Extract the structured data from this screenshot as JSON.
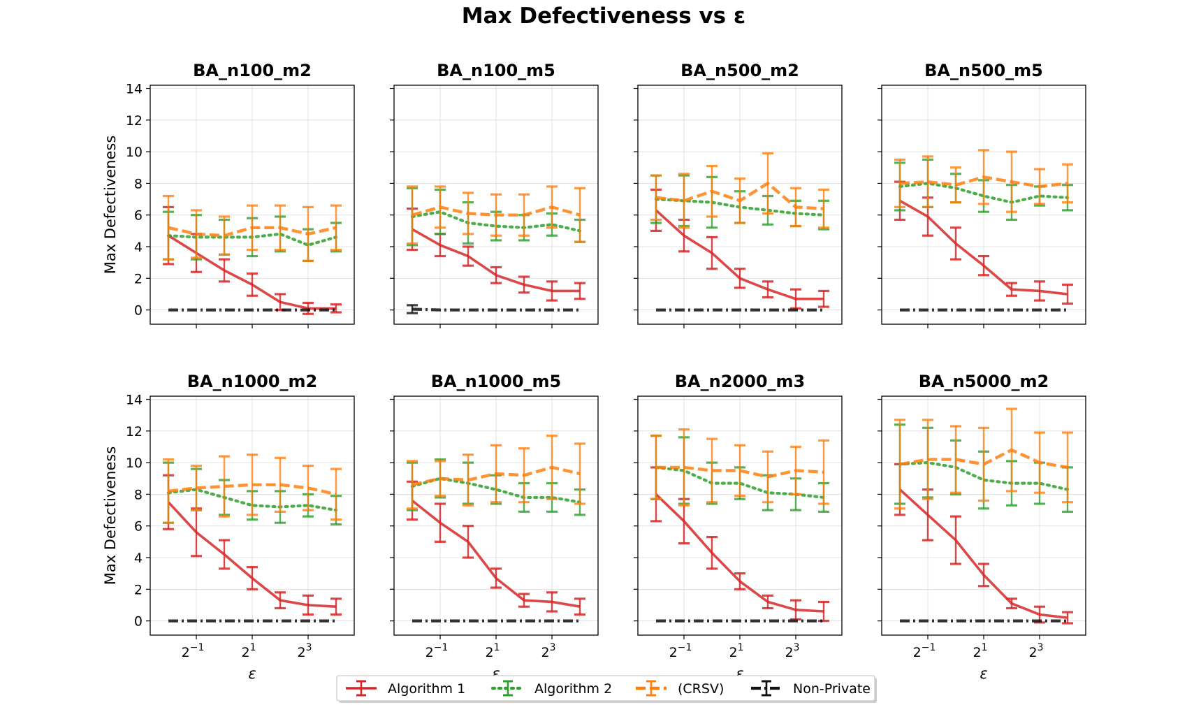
{
  "figure": {
    "title": "Max Defectiveness vs ε",
    "ylabel": "Max Defectiveness",
    "xlabel": "ε"
  },
  "legend": {
    "position": "bottom-center",
    "entries": [
      {
        "name": "Algorithm 1",
        "color": "#d62728",
        "style": "solid"
      },
      {
        "name": "Algorithm 2",
        "color": "#2ca02c",
        "style": "dotted"
      },
      {
        "name": "(CRSV)",
        "color": "#ff7f0e",
        "style": "dashed"
      },
      {
        "name": "Non-Private",
        "color": "#111111",
        "style": "dashdot"
      }
    ]
  },
  "chart_data": [
    {
      "type": "line",
      "title": "BA_n100_m2",
      "x": [
        0.25,
        0.5,
        1,
        2,
        4,
        8,
        16
      ],
      "xscale": "log2",
      "xticks": [
        {
          "value": 0.5,
          "base": "2",
          "exp": "−1"
        },
        {
          "value": 2,
          "base": "2",
          "exp": "1"
        },
        {
          "value": 8,
          "base": "2",
          "exp": "3"
        }
      ],
      "ylim": [
        -0.9,
        14.2
      ],
      "yticks": [
        "0",
        "2",
        "4",
        "6",
        "8",
        "10",
        "12",
        "14"
      ],
      "series": [
        {
          "name": "Algorithm 1",
          "values": [
            4.7,
            3.6,
            2.5,
            1.6,
            0.5,
            0.1,
            0.1
          ],
          "errors": [
            1.8,
            1.2,
            0.7,
            0.7,
            0.5,
            0.35,
            0.25
          ]
        },
        {
          "name": "Algorithm 2",
          "values": [
            4.7,
            4.6,
            4.6,
            4.6,
            4.8,
            4.1,
            4.6
          ],
          "errors": [
            1.5,
            1.4,
            1.1,
            1.2,
            1.1,
            1.0,
            0.9
          ]
        },
        {
          "name": "(CRSV)",
          "values": [
            5.2,
            4.8,
            4.7,
            5.2,
            5.2,
            4.8,
            5.2
          ],
          "errors": [
            2.0,
            1.5,
            1.2,
            1.4,
            1.4,
            1.7,
            1.4
          ]
        },
        {
          "name": "Non-Private",
          "values": [
            0,
            0,
            0,
            0,
            0,
            0,
            0
          ],
          "errors": [
            0,
            0,
            0,
            0,
            0,
            0,
            0
          ]
        }
      ]
    },
    {
      "type": "line",
      "title": "BA_n100_m5",
      "x": [
        0.25,
        0.5,
        1,
        2,
        4,
        8,
        16
      ],
      "xscale": "log2",
      "xticks": [
        {
          "value": 0.5,
          "base": "2",
          "exp": "−1"
        },
        {
          "value": 2,
          "base": "2",
          "exp": "1"
        },
        {
          "value": 8,
          "base": "2",
          "exp": "3"
        }
      ],
      "ylim": [
        -0.9,
        14.2
      ],
      "yticks": [
        "0",
        "2",
        "4",
        "6",
        "8",
        "10",
        "12",
        "14"
      ],
      "series": [
        {
          "name": "Algorithm 1",
          "values": [
            5.1,
            4.1,
            3.4,
            2.2,
            1.6,
            1.2,
            1.2
          ],
          "errors": [
            1.3,
            0.7,
            0.6,
            0.5,
            0.5,
            0.6,
            0.5
          ]
        },
        {
          "name": "Algorithm 2",
          "values": [
            5.9,
            6.2,
            5.5,
            5.3,
            5.2,
            5.4,
            5.0
          ],
          "errors": [
            1.8,
            1.4,
            1.3,
            0.9,
            0.8,
            0.7,
            0.7
          ]
        },
        {
          "name": "(CRSV)",
          "values": [
            6.0,
            6.5,
            6.1,
            6.0,
            6.0,
            6.5,
            6.0
          ],
          "errors": [
            1.8,
            1.3,
            1.3,
            1.3,
            1.3,
            1.3,
            1.7
          ]
        },
        {
          "name": "Non-Private",
          "values": [
            0.05,
            0,
            0,
            0,
            0,
            0,
            0
          ],
          "errors": [
            0.25,
            0,
            0,
            0,
            0,
            0,
            0
          ]
        }
      ]
    },
    {
      "type": "line",
      "title": "BA_n500_m2",
      "x": [
        0.25,
        0.5,
        1,
        2,
        4,
        8,
        16
      ],
      "xscale": "log2",
      "xticks": [
        {
          "value": 0.5,
          "base": "2",
          "exp": "−1"
        },
        {
          "value": 2,
          "base": "2",
          "exp": "1"
        },
        {
          "value": 8,
          "base": "2",
          "exp": "3"
        }
      ],
      "ylim": [
        -0.9,
        14.2
      ],
      "yticks": [
        "0",
        "2",
        "4",
        "6",
        "8",
        "10",
        "12",
        "14"
      ],
      "series": [
        {
          "name": "Algorithm 1",
          "values": [
            6.3,
            4.7,
            3.6,
            2.0,
            1.3,
            0.7,
            0.7
          ],
          "errors": [
            1.3,
            1.0,
            1.0,
            0.6,
            0.5,
            0.6,
            0.5
          ]
        },
        {
          "name": "Algorithm 2",
          "values": [
            7.0,
            6.9,
            6.8,
            6.5,
            6.3,
            6.1,
            6.0
          ],
          "errors": [
            1.5,
            1.6,
            1.6,
            1.0,
            0.9,
            0.8,
            0.9
          ]
        },
        {
          "name": "(CRSV)",
          "values": [
            7.1,
            6.9,
            7.5,
            6.9,
            8.0,
            6.5,
            6.4
          ],
          "errors": [
            1.4,
            1.7,
            1.6,
            1.4,
            1.9,
            1.2,
            1.2
          ]
        },
        {
          "name": "Non-Private",
          "values": [
            0,
            0,
            0,
            0,
            0,
            0,
            0
          ],
          "errors": [
            0,
            0,
            0,
            0,
            0,
            0,
            0
          ]
        }
      ]
    },
    {
      "type": "line",
      "title": "BA_n500_m5",
      "x": [
        0.25,
        0.5,
        1,
        2,
        4,
        8,
        16
      ],
      "xscale": "log2",
      "xticks": [
        {
          "value": 0.5,
          "base": "2",
          "exp": "−1"
        },
        {
          "value": 2,
          "base": "2",
          "exp": "1"
        },
        {
          "value": 8,
          "base": "2",
          "exp": "3"
        }
      ],
      "ylim": [
        -0.9,
        14.2
      ],
      "yticks": [
        "0",
        "2",
        "4",
        "6",
        "8",
        "10",
        "12",
        "14"
      ],
      "series": [
        {
          "name": "Algorithm 1",
          "values": [
            6.9,
            5.9,
            4.2,
            2.8,
            1.3,
            1.2,
            1.0
          ],
          "errors": [
            1.2,
            1.2,
            1.0,
            0.6,
            0.4,
            0.6,
            0.6
          ]
        },
        {
          "name": "Algorithm 2",
          "values": [
            7.8,
            8.0,
            7.7,
            7.2,
            6.8,
            7.2,
            7.1
          ],
          "errors": [
            1.5,
            1.5,
            0.9,
            1.0,
            1.1,
            0.6,
            0.8
          ]
        },
        {
          "name": "(CRSV)",
          "values": [
            8.0,
            8.1,
            7.9,
            8.4,
            8.1,
            7.8,
            8.0
          ],
          "errors": [
            1.5,
            1.6,
            1.1,
            1.7,
            1.9,
            1.1,
            1.2
          ]
        },
        {
          "name": "Non-Private",
          "values": [
            0,
            0,
            0,
            0,
            0,
            0,
            0
          ],
          "errors": [
            0,
            0,
            0,
            0,
            0,
            0,
            0
          ]
        }
      ]
    },
    {
      "type": "line",
      "title": "BA_n1000_m2",
      "x": [
        0.25,
        0.5,
        1,
        2,
        4,
        8,
        16
      ],
      "xscale": "log2",
      "xticks": [
        {
          "value": 0.5,
          "base": "2",
          "exp": "−1"
        },
        {
          "value": 2,
          "base": "2",
          "exp": "1"
        },
        {
          "value": 8,
          "base": "2",
          "exp": "3"
        }
      ],
      "ylim": [
        -0.9,
        14.2
      ],
      "yticks": [
        "0",
        "2",
        "4",
        "6",
        "8",
        "10",
        "12",
        "14"
      ],
      "series": [
        {
          "name": "Algorithm 1",
          "values": [
            7.5,
            5.6,
            4.2,
            2.7,
            1.3,
            1.0,
            0.9
          ],
          "errors": [
            1.7,
            1.5,
            0.9,
            0.7,
            0.5,
            0.6,
            0.5
          ]
        },
        {
          "name": "Algorithm 2",
          "values": [
            8.1,
            8.3,
            7.8,
            7.3,
            7.2,
            7.3,
            7.0
          ],
          "errors": [
            1.9,
            1.3,
            1.1,
            0.9,
            1.0,
            0.7,
            0.9
          ]
        },
        {
          "name": "(CRSV)",
          "values": [
            8.2,
            8.4,
            8.5,
            8.6,
            8.6,
            8.4,
            8.0
          ],
          "errors": [
            2.0,
            1.4,
            1.9,
            1.9,
            1.7,
            1.4,
            1.6
          ]
        },
        {
          "name": "Non-Private",
          "values": [
            0,
            0,
            0,
            0,
            0,
            0,
            0
          ],
          "errors": [
            0,
            0,
            0,
            0,
            0,
            0,
            0
          ]
        }
      ]
    },
    {
      "type": "line",
      "title": "BA_n1000_m5",
      "x": [
        0.25,
        0.5,
        1,
        2,
        4,
        8,
        16
      ],
      "xscale": "log2",
      "xticks": [
        {
          "value": 0.5,
          "base": "2",
          "exp": "−1"
        },
        {
          "value": 2,
          "base": "2",
          "exp": "1"
        },
        {
          "value": 8,
          "base": "2",
          "exp": "3"
        }
      ],
      "ylim": [
        -0.9,
        14.2
      ],
      "yticks": [
        "0",
        "2",
        "4",
        "6",
        "8",
        "10",
        "12",
        "14"
      ],
      "series": [
        {
          "name": "Algorithm 1",
          "values": [
            7.6,
            6.2,
            5.0,
            2.7,
            1.3,
            1.2,
            0.9
          ],
          "errors": [
            1.2,
            1.2,
            1.0,
            0.6,
            0.4,
            0.6,
            0.5
          ]
        },
        {
          "name": "Algorithm 2",
          "values": [
            8.5,
            9.0,
            8.7,
            8.3,
            7.8,
            7.8,
            7.5
          ],
          "errors": [
            1.5,
            1.2,
            1.3,
            0.9,
            0.9,
            0.9,
            0.8
          ]
        },
        {
          "name": "(CRSV)",
          "values": [
            8.6,
            9.0,
            8.9,
            9.3,
            9.2,
            9.7,
            9.3
          ],
          "errors": [
            1.5,
            1.1,
            1.6,
            1.8,
            1.7,
            2.0,
            1.9
          ]
        },
        {
          "name": "Non-Private",
          "values": [
            0,
            0,
            0,
            0,
            0,
            0,
            0
          ],
          "errors": [
            0,
            0,
            0,
            0,
            0,
            0,
            0
          ]
        }
      ]
    },
    {
      "type": "line",
      "title": "BA_n2000_m3",
      "x": [
        0.25,
        0.5,
        1,
        2,
        4,
        8,
        16
      ],
      "xscale": "log2",
      "xticks": [
        {
          "value": 0.5,
          "base": "2",
          "exp": "−1"
        },
        {
          "value": 2,
          "base": "2",
          "exp": "1"
        },
        {
          "value": 8,
          "base": "2",
          "exp": "3"
        }
      ],
      "ylim": [
        -0.9,
        14.2
      ],
      "yticks": [
        "0",
        "2",
        "4",
        "6",
        "8",
        "10",
        "12",
        "14"
      ],
      "series": [
        {
          "name": "Algorithm 1",
          "values": [
            8.0,
            6.3,
            4.3,
            2.5,
            1.2,
            0.7,
            0.6
          ],
          "errors": [
            1.7,
            1.4,
            1.0,
            0.5,
            0.4,
            0.6,
            0.6
          ]
        },
        {
          "name": "Algorithm 2",
          "values": [
            9.7,
            9.5,
            8.7,
            8.7,
            8.1,
            8.0,
            7.8
          ],
          "errors": [
            2.0,
            2.1,
            1.3,
            1.0,
            1.1,
            1.0,
            0.9
          ]
        },
        {
          "name": "(CRSV)",
          "values": [
            9.7,
            9.7,
            9.5,
            9.5,
            9.1,
            9.5,
            9.4
          ],
          "errors": [
            2.0,
            2.4,
            2.0,
            1.6,
            1.6,
            1.5,
            2.0
          ]
        },
        {
          "name": "Non-Private",
          "values": [
            0,
            0,
            0,
            0,
            0,
            0,
            0
          ],
          "errors": [
            0,
            0,
            0,
            0,
            0,
            0,
            0
          ]
        }
      ]
    },
    {
      "type": "line",
      "title": "BA_n5000_m2",
      "x": [
        0.25,
        0.5,
        1,
        2,
        4,
        8,
        16
      ],
      "xscale": "log2",
      "xticks": [
        {
          "value": 0.5,
          "base": "2",
          "exp": "−1"
        },
        {
          "value": 2,
          "base": "2",
          "exp": "1"
        },
        {
          "value": 8,
          "base": "2",
          "exp": "3"
        }
      ],
      "ylim": [
        -0.9,
        14.2
      ],
      "yticks": [
        "0",
        "2",
        "4",
        "6",
        "8",
        "10",
        "12",
        "14"
      ],
      "series": [
        {
          "name": "Algorithm 1",
          "values": [
            8.3,
            6.7,
            5.1,
            2.9,
            1.1,
            0.4,
            0.2
          ],
          "errors": [
            1.6,
            1.6,
            1.5,
            0.7,
            0.3,
            0.5,
            0.35
          ]
        },
        {
          "name": "Algorithm 2",
          "values": [
            9.9,
            10.0,
            9.7,
            8.9,
            8.7,
            8.7,
            8.3
          ],
          "errors": [
            2.5,
            2.2,
            1.7,
            1.8,
            1.4,
            1.3,
            1.4
          ]
        },
        {
          "name": "(CRSV)",
          "values": [
            9.9,
            10.2,
            10.2,
            9.9,
            10.8,
            10.0,
            9.7
          ],
          "errors": [
            2.8,
            2.5,
            2.1,
            2.3,
            2.6,
            1.9,
            2.2
          ]
        },
        {
          "name": "Non-Private",
          "values": [
            0,
            0,
            0,
            0,
            0,
            0,
            0
          ],
          "errors": [
            0,
            0,
            0,
            0,
            0,
            0,
            0
          ]
        }
      ]
    }
  ]
}
